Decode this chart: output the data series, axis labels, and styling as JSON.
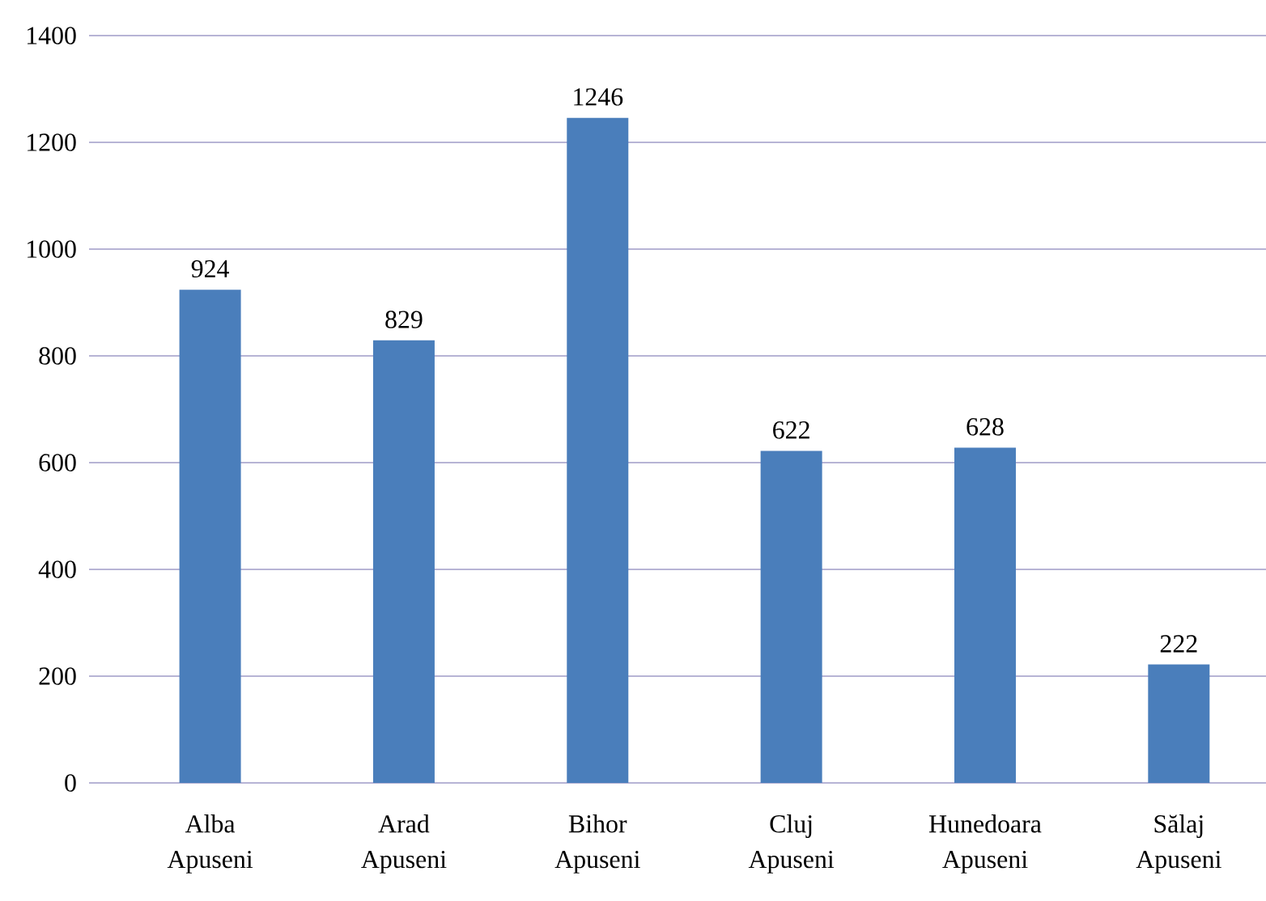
{
  "chart_data": {
    "type": "bar",
    "categories": [
      "Alba Apuseni",
      "Arad Apuseni",
      "Bihor Apuseni",
      "Cluj Apuseni",
      "Hunedoara Apuseni",
      "Sălaj Apuseni"
    ],
    "values": [
      924,
      829,
      1246,
      622,
      628,
      222
    ],
    "color": "#4a7ebb",
    "ylim": [
      0,
      1400
    ],
    "yticks": [
      0,
      200,
      400,
      600,
      800,
      1000,
      1200,
      1400
    ],
    "grid": "y",
    "data_labels": true
  }
}
